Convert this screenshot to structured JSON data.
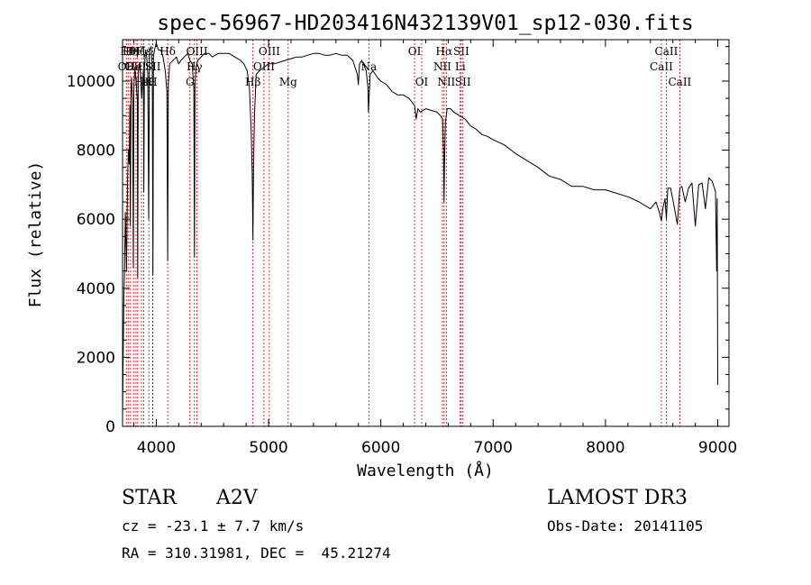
{
  "chart_data": {
    "type": "line",
    "title": "spec-56967-HD203416N432139V01_sp12-030.fits",
    "xlabel": "Wavelength (Å)",
    "ylabel": "Flux (relative)",
    "xlim": [
      3700,
      9100
    ],
    "ylim": [
      0,
      11200
    ],
    "xticks": [
      4000,
      5000,
      6000,
      7000,
      8000,
      9000
    ],
    "yticks": [
      0,
      2000,
      4000,
      6000,
      8000,
      10000
    ],
    "series": [
      {
        "name": "spectrum",
        "x": [
          3700,
          3705,
          3712,
          3718,
          3725,
          3735,
          3745,
          3752,
          3760,
          3765,
          3770,
          3775,
          3780,
          3790,
          3796,
          3800,
          3810,
          3820,
          3832,
          3835,
          3840,
          3850,
          3860,
          3870,
          3885,
          3889,
          3895,
          3905,
          3915,
          3925,
          3933,
          3940,
          3955,
          3965,
          3970,
          3975,
          3985,
          4000,
          4020,
          4040,
          4060,
          4080,
          4095,
          4102,
          4108,
          4120,
          4150,
          4180,
          4200,
          4220,
          4250,
          4280,
          4300,
          4320,
          4335,
          4340,
          4345,
          4355,
          4370,
          4400,
          4430,
          4470,
          4500,
          4550,
          4600,
          4650,
          4700,
          4750,
          4780,
          4810,
          4830,
          4845,
          4855,
          4861,
          4867,
          4875,
          4890,
          4920,
          4960,
          5000,
          5050,
          5100,
          5150,
          5200,
          5250,
          5300,
          5350,
          5400,
          5450,
          5500,
          5550,
          5600,
          5650,
          5700,
          5750,
          5790,
          5800,
          5810,
          5830,
          5870,
          5885,
          5890,
          5896,
          5905,
          5930,
          5970,
          6000,
          6050,
          6100,
          6150,
          6200,
          6250,
          6300,
          6315,
          6330,
          6350,
          6400,
          6450,
          6500,
          6530,
          6550,
          6558,
          6563,
          6568,
          6575,
          6590,
          6620,
          6650,
          6700,
          6750,
          6800,
          6850,
          6900,
          6950,
          7000,
          7100,
          7200,
          7300,
          7400,
          7500,
          7600,
          7700,
          7800,
          7900,
          8000,
          8100,
          8200,
          8300,
          8400,
          8450,
          8480,
          8498,
          8510,
          8530,
          8542,
          8555,
          8580,
          8610,
          8640,
          8662,
          8680,
          8710,
          8740,
          8770,
          8800,
          8830,
          8860,
          8890,
          8920,
          8950,
          8980,
          8990,
          8995,
          9000
        ],
        "values": [
          300,
          1800,
          3800,
          4500,
          6200,
          4500,
          7200,
          8000,
          7600,
          9300,
          5800,
          9600,
          10100,
          9400,
          4600,
          9800,
          10400,
          10000,
          9400,
          4300,
          10300,
          10500,
          10200,
          9500,
          10300,
          6800,
          10400,
          10900,
          10700,
          10200,
          6000,
          10900,
          11000,
          10300,
          4400,
          10700,
          10900,
          11100,
          10900,
          10900,
          10700,
          10300,
          9700,
          4800,
          9900,
          10500,
          10600,
          10700,
          10500,
          10600,
          10700,
          10800,
          10600,
          10500,
          9800,
          4900,
          9900,
          10400,
          10600,
          10700,
          10800,
          10800,
          10700,
          10800,
          10800,
          10800,
          10700,
          10600,
          10500,
          10300,
          9800,
          8600,
          7300,
          5400,
          7600,
          9000,
          10200,
          10300,
          10400,
          10500,
          10500,
          10550,
          10600,
          10650,
          10700,
          10700,
          10750,
          10800,
          10800,
          10750,
          10750,
          10800,
          10750,
          10750,
          10600,
          10200,
          9900,
          10500,
          10600,
          10300,
          9800,
          9100,
          9600,
          10200,
          10300,
          10100,
          10000,
          9900,
          9700,
          9600,
          9600,
          9500,
          9300,
          8900,
          9200,
          9100,
          9200,
          9150,
          9100,
          9000,
          8900,
          7900,
          6500,
          7800,
          8800,
          9200,
          9200,
          9100,
          9000,
          8900,
          8700,
          8600,
          8450,
          8400,
          8300,
          8150,
          7900,
          7700,
          7500,
          7250,
          7150,
          6950,
          6950,
          6850,
          6850,
          6750,
          6650,
          6500,
          6300,
          6500,
          6200,
          5950,
          6300,
          6600,
          6000,
          6900,
          6900,
          6400,
          5850,
          6900,
          6950,
          6500,
          6900,
          7050,
          5800,
          7000,
          7050,
          6300,
          7200,
          7100,
          6800,
          4500,
          6600,
          1200
        ]
      }
    ],
    "line_markers": [
      {
        "wavelength": 3734,
        "label": "OII",
        "row": 2
      },
      {
        "wavelength": 3750,
        "label": "Hθ",
        "row": 1
      },
      {
        "wavelength": 3771,
        "label": "Hη",
        "row": 1
      },
      {
        "wavelength": 3798,
        "label": "OII",
        "row": 2
      },
      {
        "wavelength": 3820,
        "label": "HeI",
        "row": 2
      },
      {
        "wavelength": 3835,
        "label": "Hζ",
        "row": 1
      },
      {
        "wavelength": 3869,
        "label": "Hε",
        "row": 3
      },
      {
        "wavelength": 3889,
        "label": "Hε",
        "row": 1
      },
      {
        "wavelength": 3934,
        "label": "K",
        "row": 3
      },
      {
        "wavelength": 3968,
        "label": "H",
        "row": 3
      },
      {
        "wavelength": 3970,
        "label": "SII",
        "row": 2
      },
      {
        "wavelength": 4102,
        "label": "Hδ",
        "row": 1
      },
      {
        "wavelength": 4300,
        "label": "G",
        "row": 3
      },
      {
        "wavelength": 4340,
        "label": "Hγ",
        "row": 2
      },
      {
        "wavelength": 4363,
        "label": "OIII",
        "row": 1
      },
      {
        "wavelength": 4861,
        "label": "Hβ",
        "row": 3
      },
      {
        "wavelength": 4959,
        "label": "OIII",
        "row": 2
      },
      {
        "wavelength": 5007,
        "label": "OIII",
        "row": 1
      },
      {
        "wavelength": 5175,
        "label": "Mg",
        "row": 3
      },
      {
        "wavelength": 5893,
        "label": "Na",
        "row": 2
      },
      {
        "wavelength": 6300,
        "label": "OI",
        "row": 1
      },
      {
        "wavelength": 6364,
        "label": "OI",
        "row": 3
      },
      {
        "wavelength": 6548,
        "label": "NII",
        "row": 2
      },
      {
        "wavelength": 6563,
        "label": "Hα",
        "row": 1
      },
      {
        "wavelength": 6583,
        "label": "NII",
        "row": 3
      },
      {
        "wavelength": 6707,
        "label": "Li",
        "row": 2
      },
      {
        "wavelength": 6716,
        "label": "SII",
        "row": 1
      },
      {
        "wavelength": 6731,
        "label": "SII",
        "row": 3
      },
      {
        "wavelength": 8498,
        "label": "CaII",
        "row": 2
      },
      {
        "wavelength": 8542,
        "label": "CaII",
        "row": 1
      },
      {
        "wavelength": 8662,
        "label": "CaII",
        "row": 3
      }
    ]
  },
  "info": {
    "object_class": "STAR",
    "subclass": "A2V",
    "survey": "LAMOST DR3",
    "cz": "cz = -23.1 ± 7.7 km/s",
    "obs_date": "Obs-Date: 20141105",
    "coords": "RA = 310.31981, DEC =  45.21274"
  }
}
